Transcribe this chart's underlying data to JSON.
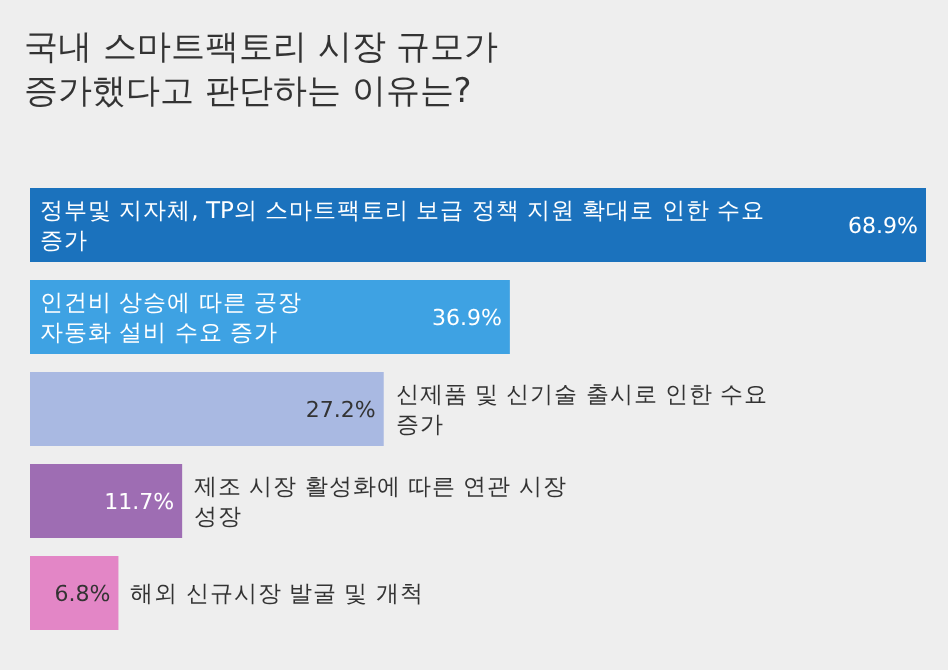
{
  "chart_data": {
    "type": "bar",
    "orientation": "horizontal",
    "title": "국내 스마트팩토리 시장 규모가 증가했다고 판단하는 이유는?",
    "categories": [
      "정부및 지자체, TP의 스마트팩토리 보급 정책 지원 확대로 인한 수요 증가",
      "인건비 상승에 따른 공장 자동화 설비 수요 증가",
      "신제품 및 신기술 출시로 인한 수요 증가",
      "제조 시장 활성화에 따른 연관 시장 성장",
      "해외 신규시장 발굴 및 개척"
    ],
    "values": [
      68.9,
      36.9,
      27.2,
      11.7,
      6.8
    ],
    "value_labels": [
      "68.9%",
      "36.9%",
      "27.2%",
      "11.7%",
      "6.8%"
    ],
    "colors": [
      "#1b72bd",
      "#3ea2e3",
      "#a9b9e2",
      "#9e6db3",
      "#e386c6"
    ]
  }
}
